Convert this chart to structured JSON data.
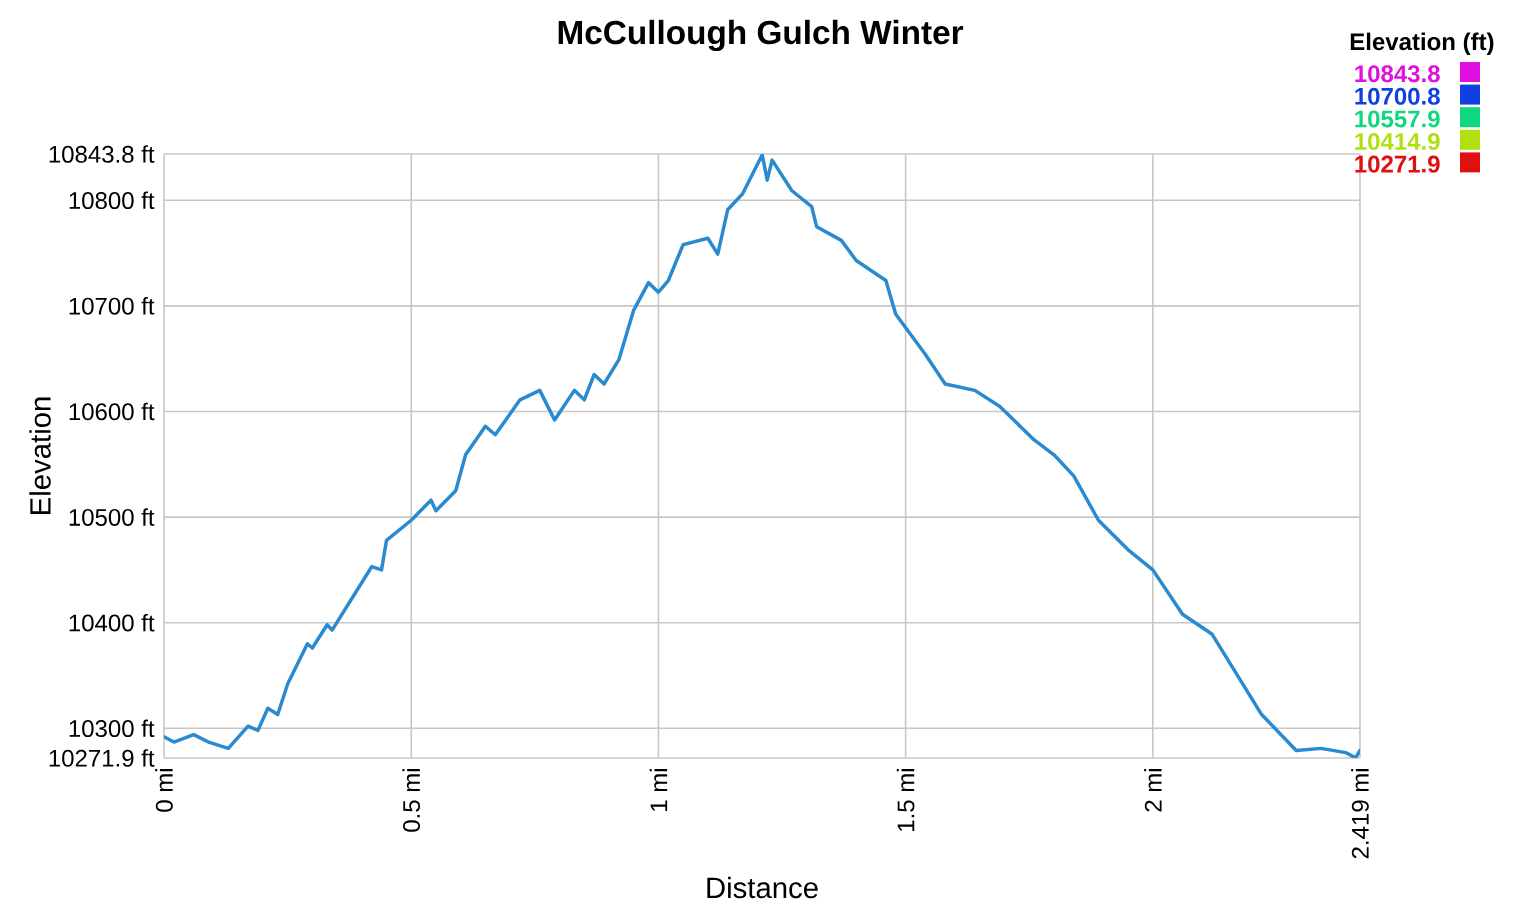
{
  "chart_data": {
    "type": "line",
    "title": "McCullough Gulch Winter",
    "xlabel": "Distance",
    "ylabel": "Elevation",
    "clabel": "Elevation (ft)",
    "series": [
      {
        "color": "#2a8ad0",
        "x": [
          0,
          0.02,
          0.06,
          0.09,
          0.13,
          0.17,
          0.19,
          0.21,
          0.23,
          0.25,
          0.29,
          0.3,
          0.33,
          0.34,
          0.42,
          0.44,
          0.45,
          0.5,
          0.54,
          0.55,
          0.59,
          0.61,
          0.65,
          0.67,
          0.72,
          0.76,
          0.79,
          0.83,
          0.85,
          0.87,
          0.89,
          0.92,
          0.95,
          0.98,
          1.0,
          1.02,
          1.05,
          1.1,
          1.12,
          1.14,
          1.17,
          1.21,
          1.22,
          1.23,
          1.27,
          1.31,
          1.32,
          1.37,
          1.4,
          1.46,
          1.48,
          1.54,
          1.58,
          1.64,
          1.69,
          1.76,
          1.8,
          1.84,
          1.89,
          1.95,
          2.0,
          2.06,
          2.12,
          2.22,
          2.29,
          2.34,
          2.39,
          2.41,
          2.419
        ],
        "values": [
          10292,
          10287,
          10294,
          10287,
          10281,
          10302,
          10298,
          10319,
          10313,
          10342,
          10380,
          10376,
          10398,
          10393,
          10453,
          10450,
          10478,
          10497,
          10516,
          10506,
          10525,
          10559,
          10586,
          10578,
          10611,
          10620,
          10592,
          10620,
          10611,
          10635,
          10626,
          10649,
          10696,
          10722,
          10713,
          10724,
          10758,
          10764,
          10749,
          10791,
          10806,
          10843,
          10819,
          10838,
          10809,
          10794,
          10775,
          10762,
          10743,
          10724,
          10692,
          10654,
          10626,
          10620,
          10605,
          10573,
          10559,
          10539,
          10497,
          10469,
          10450,
          10408,
          10389,
          10313,
          10279,
          10281,
          10277,
          10272,
          10279
        ]
      }
    ],
    "xlim": [
      0,
      2.419
    ],
    "ylim": [
      10271.9,
      10843.8
    ],
    "xticks": [
      {
        "value": 0,
        "label": "0 mi"
      },
      {
        "value": 0.5,
        "label": "0.5 mi"
      },
      {
        "value": 1,
        "label": "1 mi"
      },
      {
        "value": 1.5,
        "label": "1.5 mi"
      },
      {
        "value": 2,
        "label": "2 mi"
      },
      {
        "value": 2.419,
        "label": "2.419 mi"
      }
    ],
    "yticks": [
      {
        "value": 10271.9,
        "label": "10271.9 ft"
      },
      {
        "value": 10300,
        "label": "10300 ft"
      },
      {
        "value": 10400,
        "label": "10400 ft"
      },
      {
        "value": 10500,
        "label": "10500 ft"
      },
      {
        "value": 10600,
        "label": "10600 ft"
      },
      {
        "value": 10700,
        "label": "10700 ft"
      },
      {
        "value": 10800,
        "label": "10800 ft"
      },
      {
        "value": 10843.8,
        "label": "10843.8 ft"
      }
    ],
    "clim": [
      10271.9,
      10843.8
    ],
    "cticks": [
      {
        "value": 10843.8,
        "label": "10843.8"
      },
      {
        "value": 10700.8,
        "label": "10700.8"
      },
      {
        "value": 10557.9,
        "label": "10557.9"
      },
      {
        "value": 10414.9,
        "label": "10414.9"
      },
      {
        "value": 10271.9,
        "label": "10271.9"
      }
    ],
    "grid": true,
    "marker": "none",
    "line_style": "solid"
  }
}
